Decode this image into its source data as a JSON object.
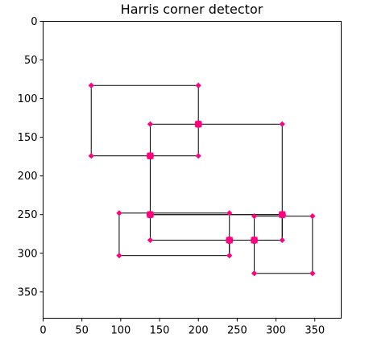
{
  "chart_data": {
    "type": "scatter",
    "title": "Harris corner detector",
    "xlabel": "",
    "ylabel": "",
    "xlim": [
      0,
      384
    ],
    "ylim": [
      384,
      0
    ],
    "y_axis_inverted": true,
    "grid": false,
    "xticks": [
      0,
      50,
      100,
      150,
      200,
      250,
      300,
      350
    ],
    "yticks": [
      0,
      50,
      100,
      150,
      200,
      250,
      300,
      350
    ],
    "line_color": "#000000",
    "marker_color": "#ff0080",
    "rectangles": [
      {
        "x1": 62,
        "y1": 83,
        "x2": 200,
        "y2": 174
      },
      {
        "x1": 138,
        "y1": 133,
        "x2": 308,
        "y2": 250
      },
      {
        "x1": 98,
        "y1": 248,
        "x2": 240,
        "y2": 303
      },
      {
        "x1": 138,
        "y1": 174,
        "x2": 138,
        "y2": 282
      },
      {
        "x1": 138,
        "y1": 250,
        "x2": 308,
        "y2": 283
      },
      {
        "x1": 272,
        "y1": 252,
        "x2": 347,
        "y2": 326
      }
    ],
    "segments": [
      {
        "x1": 138,
        "y1": 174,
        "x2": 138,
        "y2": 283
      },
      {
        "x1": 240,
        "y1": 283,
        "x2": 240,
        "y2": 303
      },
      {
        "x1": 272,
        "y1": 283,
        "x2": 308,
        "y2": 283
      },
      {
        "x1": 308,
        "y1": 250,
        "x2": 308,
        "y2": 283
      }
    ],
    "corners_small": [
      [
        62,
        83
      ],
      [
        200,
        83
      ],
      [
        62,
        174
      ],
      [
        200,
        174
      ],
      [
        138,
        133
      ],
      [
        308,
        133
      ],
      [
        98,
        248
      ],
      [
        240,
        248
      ],
      [
        98,
        303
      ],
      [
        240,
        303
      ],
      [
        138,
        283
      ],
      [
        308,
        283
      ],
      [
        272,
        252
      ],
      [
        347,
        252
      ],
      [
        272,
        326
      ],
      [
        347,
        326
      ]
    ],
    "corners_large": [
      [
        200,
        133
      ],
      [
        138,
        174
      ],
      [
        138,
        250
      ],
      [
        308,
        250
      ],
      [
        240,
        283
      ],
      [
        272,
        283
      ]
    ]
  }
}
